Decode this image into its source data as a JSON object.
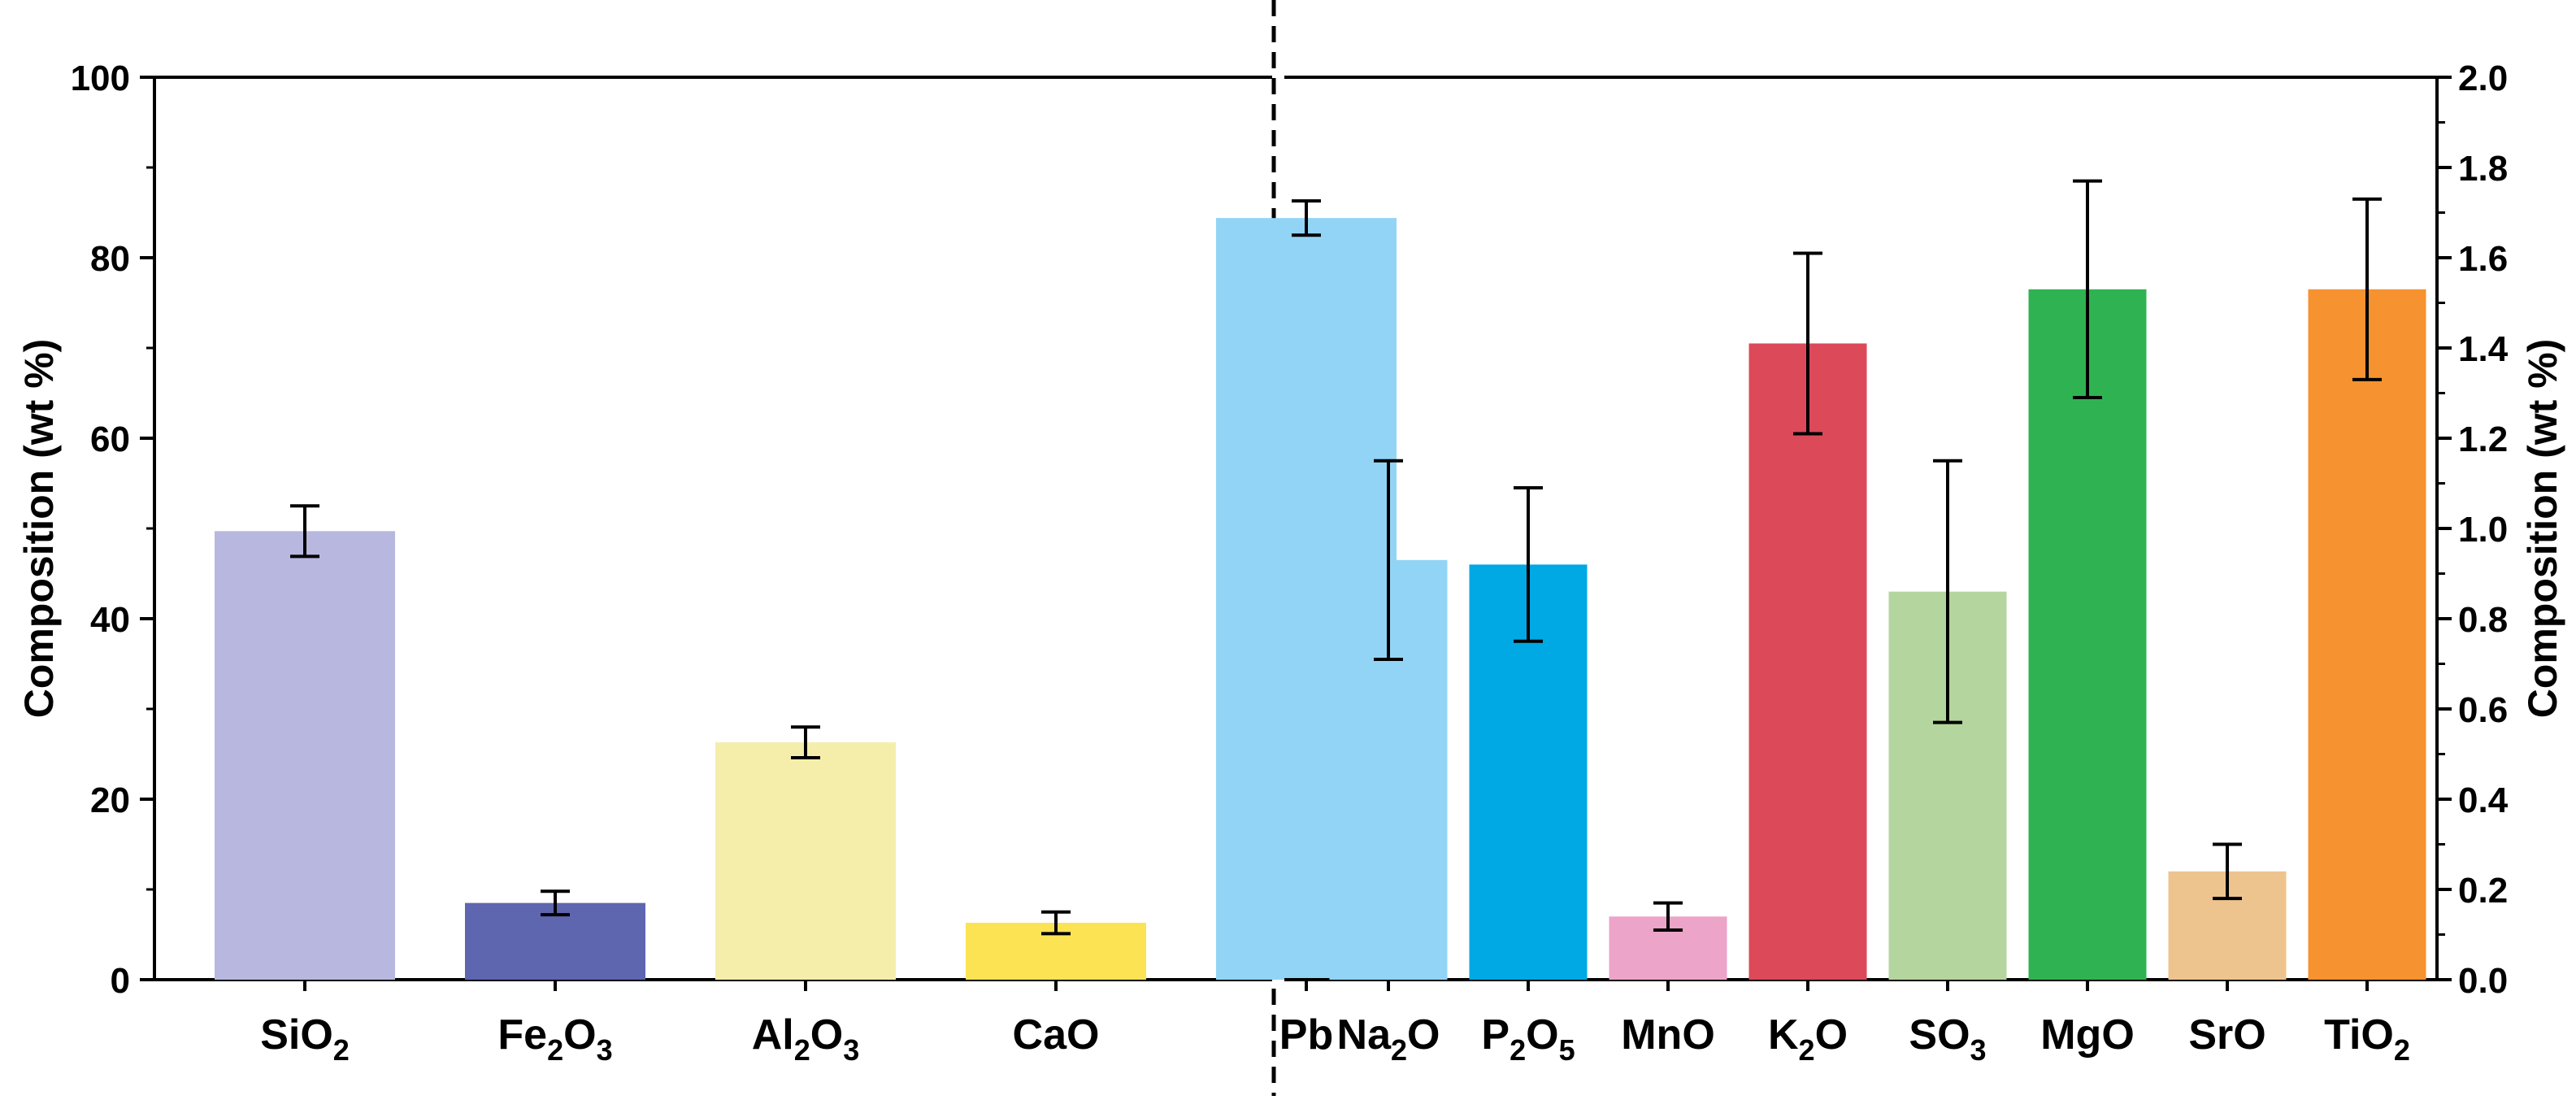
{
  "chart_data": [
    {
      "type": "bar",
      "ylabel": "Composition (wt %)",
      "ylim": [
        0,
        100
      ],
      "yticks": [
        "0",
        "20",
        "40",
        "60",
        "80",
        "100"
      ],
      "ytick_values": [
        0,
        20,
        40,
        60,
        80,
        100
      ],
      "error_bars": true,
      "grid": false,
      "categories": [
        {
          "base": "SiO",
          "sub": "2",
          "post": ""
        },
        {
          "base": "Fe",
          "sub": "2",
          "post": "O",
          "sub2": "3"
        },
        {
          "base": "Al",
          "sub": "2",
          "post": "O",
          "sub2": "3"
        },
        {
          "base": "CaO",
          "sub": "",
          "post": ""
        },
        {
          "base": "Pb",
          "sub": "",
          "post": ""
        }
      ],
      "values": [
        49.7,
        8.5,
        26.3,
        6.3,
        84.4
      ],
      "errors": [
        2.8,
        1.3,
        1.7,
        1.2,
        1.9
      ],
      "colors": [
        "#b7b7df",
        "#5e66b0",
        "#f5eeaa",
        "#fbe354",
        "#92d4f5"
      ]
    },
    {
      "type": "bar",
      "ylabel": "Composition (wt %)",
      "ylim": [
        0,
        2.0
      ],
      "yticks": [
        "0.0",
        "0.2",
        "0.4",
        "0.6",
        "0.8",
        "1.0",
        "1.2",
        "1.4",
        "1.6",
        "1.8",
        "2.0"
      ],
      "ytick_values": [
        0,
        0.2,
        0.4,
        0.6,
        0.8,
        1.0,
        1.2,
        1.4,
        1.6,
        1.8,
        2.0
      ],
      "error_bars": true,
      "grid": false,
      "categories": [
        {
          "base": "Na",
          "sub": "2",
          "post": "O"
        },
        {
          "base": "P",
          "sub": "2",
          "post": "O",
          "sub2": "5"
        },
        {
          "base": "MnO",
          "sub": "",
          "post": ""
        },
        {
          "base": "K",
          "sub": "2",
          "post": "O"
        },
        {
          "base": "SO",
          "sub": "3",
          "post": ""
        },
        {
          "base": "MgO",
          "sub": "",
          "post": ""
        },
        {
          "base": "SrO",
          "sub": "",
          "post": ""
        },
        {
          "base": "TiO",
          "sub": "2",
          "post": ""
        }
      ],
      "values": [
        0.93,
        0.92,
        0.14,
        1.41,
        0.86,
        1.53,
        0.24,
        1.53
      ],
      "errors": [
        0.22,
        0.17,
        0.03,
        0.2,
        0.29,
        0.24,
        0.06,
        0.2
      ],
      "colors": [
        "#92d4f5",
        "#00a8e4",
        "#eca4c8",
        "#dc4959",
        "#b4d59e",
        "#2fb352",
        "#eec48e",
        "#f6922f"
      ]
    }
  ]
}
